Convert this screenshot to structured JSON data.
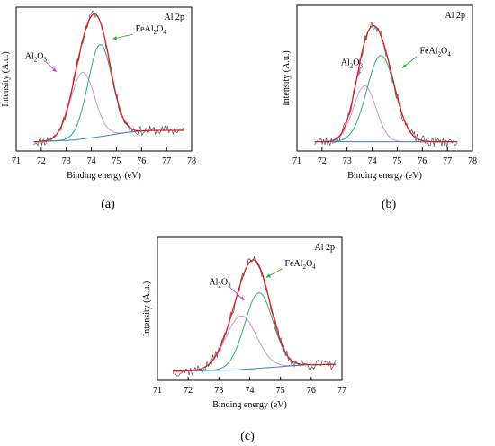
{
  "figure": {
    "panels": [
      {
        "panel_label": "(a)"
      },
      {
        "panel_label": "(b)"
      },
      {
        "panel_label": "(c)"
      }
    ]
  },
  "chart_data": [
    {
      "type": "line",
      "panel": "(a)",
      "title": "Al 2p",
      "xlabel": "Binding energy (eV)",
      "ylabel": "Intensity (A.u.)",
      "xlim": [
        71,
        78
      ],
      "xticks": [
        71,
        72,
        73,
        74,
        75,
        76,
        77,
        78
      ],
      "y_ticks_shown": false,
      "annotations": [
        {
          "label_main": "Al",
          "label_sub": "2",
          "label_main2": "O",
          "label_sub2": "3",
          "target_series": "Al2O3 component",
          "arrow_color": "#cc44cc"
        },
        {
          "label_main": "FeAl",
          "label_sub": "2",
          "label_main2": "O",
          "label_sub2": "4",
          "target_series": "FeAl2O4 component",
          "arrow_color": "#33aa33"
        }
      ],
      "series": [
        {
          "name": "Al2O3 component",
          "kind": "gaussian",
          "color": "#d58fe0",
          "center": 73.65,
          "height": 0.58,
          "sigma": 0.48
        },
        {
          "name": "FeAl2O4 component",
          "kind": "gaussian",
          "color": "#2aaa80",
          "center": 74.35,
          "height": 0.8,
          "sigma": 0.48
        },
        {
          "name": "background",
          "kind": "baseline",
          "color": "#3a7fd0",
          "x": [
            71.7,
            73.3,
            74.5,
            75.5,
            76.5,
            77.7
          ],
          "y": [
            0.0,
            0.015,
            0.05,
            0.085,
            0.1,
            0.1
          ]
        },
        {
          "name": "fit envelope",
          "kind": "envelope",
          "color": "#e02020"
        },
        {
          "name": "raw spectrum",
          "kind": "noisy",
          "color": "#555555",
          "x_range": [
            71.7,
            77.7
          ],
          "noise": 0.04,
          "seed": 11
        }
      ],
      "y_plot_range": [
        -0.08,
        1.17
      ]
    },
    {
      "type": "line",
      "panel": "(b)",
      "title": "Al 2p",
      "xlabel": "Binding energy (eV)",
      "ylabel": "Intensity (A.u.)",
      "xlim": [
        71,
        78
      ],
      "xticks": [
        71,
        72,
        73,
        74,
        75,
        76,
        77,
        78
      ],
      "y_ticks_shown": false,
      "annotations": [
        {
          "label_main": "Al",
          "label_sub": "2",
          "label_main2": "O",
          "label_sub2": "3",
          "target_series": "Al2O3 component",
          "arrow_color": "#cc44cc"
        },
        {
          "label_main": "FeAl",
          "label_sub": "2",
          "label_main2": "O",
          "label_sub2": "4",
          "target_series": "FeAl2O4 component",
          "arrow_color": "#33aa33"
        }
      ],
      "series": [
        {
          "name": "Al2O3 component",
          "kind": "gaussian",
          "color": "#d58fe0",
          "center": 73.7,
          "height": 0.48,
          "sigma": 0.45
        },
        {
          "name": "FeAl2O4 component",
          "kind": "gaussian",
          "color": "#2aaa80",
          "center": 74.35,
          "height": 0.74,
          "sigma": 0.56
        },
        {
          "name": "background",
          "kind": "baseline",
          "color": "#3a7fd0",
          "x": [
            71.7,
            77.4
          ],
          "y": [
            0.0,
            0.0
          ]
        },
        {
          "name": "fit envelope",
          "kind": "envelope",
          "color": "#e02020"
        },
        {
          "name": "raw spectrum",
          "kind": "noisy",
          "color": "#555555",
          "x_range": [
            71.7,
            77.4
          ],
          "noise": 0.045,
          "seed": 23
        }
      ],
      "y_plot_range": [
        -0.08,
        1.17
      ]
    },
    {
      "type": "line",
      "panel": "(c)",
      "title": "Al 2p",
      "xlabel": "Binding energy (eV)",
      "ylabel": "Intensity (A.u.)",
      "xlim": [
        71,
        77
      ],
      "xticks": [
        71,
        72,
        73,
        74,
        75,
        76,
        77
      ],
      "y_ticks_shown": false,
      "annotations": [
        {
          "label_main": "Al",
          "label_sub": "2",
          "label_main2": "O",
          "label_sub2": "3",
          "target_series": "Al2O3 component",
          "arrow_color": "#cc44cc"
        },
        {
          "label_main": "FeAl",
          "label_sub": "2",
          "label_main2": "O",
          "label_sub2": "4",
          "target_series": "FeAl2O4 component",
          "arrow_color": "#33aa33"
        }
      ],
      "series": [
        {
          "name": "Al2O3 component",
          "kind": "gaussian",
          "color": "#d58fe0",
          "center": 73.72,
          "height": 0.47,
          "sigma": 0.5
        },
        {
          "name": "FeAl2O4 component",
          "kind": "gaussian",
          "color": "#2aaa80",
          "center": 74.3,
          "height": 0.66,
          "sigma": 0.46
        },
        {
          "name": "background",
          "kind": "baseline",
          "color": "#3a7fd0",
          "x": [
            71.5,
            73.5,
            74.8,
            75.8,
            76.8
          ],
          "y": [
            0.0,
            0.01,
            0.035,
            0.055,
            0.06
          ]
        },
        {
          "name": "fit envelope",
          "kind": "envelope",
          "color": "#e02020"
        },
        {
          "name": "raw spectrum",
          "kind": "noisy",
          "color": "#555555",
          "x_range": [
            71.5,
            76.8
          ],
          "noise": 0.045,
          "seed": 37
        }
      ],
      "y_plot_range": [
        -0.08,
        1.17
      ]
    }
  ]
}
